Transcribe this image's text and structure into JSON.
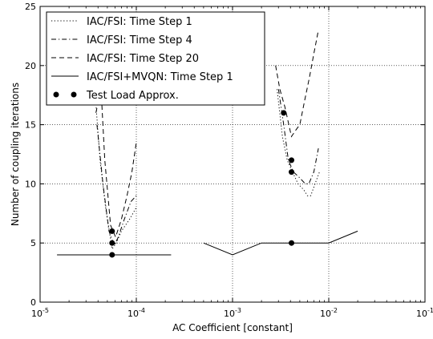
{
  "chart_data": {
    "type": "line",
    "title": "",
    "xlabel": "AC Coefficient [constant]",
    "ylabel": "Number of coupling iterations",
    "xscale": "log",
    "xlim": [
      1e-05,
      0.1
    ],
    "ylim": [
      0,
      25
    ],
    "grid": true,
    "legend_position": "top-left",
    "x_ticks": [
      {
        "value": 1e-05,
        "base": "10",
        "exp": "-5"
      },
      {
        "value": 0.0001,
        "base": "10",
        "exp": "-4"
      },
      {
        "value": 0.001,
        "base": "10",
        "exp": "-3"
      },
      {
        "value": 0.01,
        "base": "10",
        "exp": "-2"
      },
      {
        "value": 0.1,
        "base": "10",
        "exp": "-1"
      }
    ],
    "y_ticks": [
      {
        "value": 0,
        "label": "0"
      },
      {
        "value": 5,
        "label": "5"
      },
      {
        "value": 10,
        "label": "10"
      },
      {
        "value": 15,
        "label": "15"
      },
      {
        "value": 20,
        "label": "20"
      },
      {
        "value": 25,
        "label": "25"
      }
    ],
    "series": [
      {
        "name": "IAC/FSI: Time Step 1",
        "style": "dotted",
        "color": "#000000",
        "segments": [
          [
            [
              3.7e-05,
              18
            ],
            [
              4.2e-05,
              12
            ],
            [
              4.8e-05,
              8
            ],
            [
              5.6e-05,
              4.5
            ],
            [
              6.2e-05,
              5
            ],
            [
              7e-05,
              6
            ],
            [
              8.5e-05,
              7
            ],
            [
              0.0001,
              8
            ]
          ],
          [
            [
              0.0029,
              18
            ],
            [
              0.0033,
              14
            ],
            [
              0.0037,
              12
            ],
            [
              0.0042,
              11
            ],
            [
              0.0048,
              10
            ],
            [
              0.0055,
              9.5
            ],
            [
              0.006,
              9
            ],
            [
              0.0065,
              9
            ],
            [
              0.0072,
              10
            ],
            [
              0.008,
              11
            ]
          ]
        ]
      },
      {
        "name": "IAC/FSI: Time Step 4",
        "style": "dashdot",
        "color": "#000000",
        "segments": [
          [
            [
              3.9e-05,
              15
            ],
            [
              4.5e-05,
              10
            ],
            [
              5.2e-05,
              6
            ],
            [
              5.9e-05,
              4.8
            ],
            [
              6.5e-05,
              5.5
            ],
            [
              7.5e-05,
              7
            ],
            [
              8.8e-05,
              8.5
            ],
            [
              0.0001,
              9
            ]
          ],
          [
            [
              0.003,
              18
            ],
            [
              0.0034,
              15
            ],
            [
              0.0038,
              12
            ],
            [
              0.0043,
              11
            ],
            [
              0.005,
              10.5
            ],
            [
              0.0057,
              10
            ],
            [
              0.0062,
              10
            ],
            [
              0.007,
              11
            ],
            [
              0.0078,
              13
            ]
          ]
        ]
      },
      {
        "name": "IAC/FSI: Time Step 20",
        "style": "dashed",
        "color": "#000000",
        "segments": [
          [
            [
              3.8e-05,
              16
            ],
            [
              4.3e-05,
              18
            ],
            [
              4.7e-05,
              12
            ],
            [
              5.4e-05,
              6.5
            ],
            [
              6.1e-05,
              5.5
            ],
            [
              7e-05,
              7
            ],
            [
              8e-05,
              9
            ],
            [
              9e-05,
              11
            ],
            [
              0.0001,
              13.5
            ]
          ],
          [
            [
              0.0028,
              20
            ],
            [
              0.0031,
              18
            ],
            [
              0.0035,
              16.5
            ],
            [
              0.0041,
              14
            ],
            [
              0.0045,
              14.5
            ],
            [
              0.005,
              15
            ],
            [
              0.0056,
              17
            ],
            [
              0.0063,
              19
            ],
            [
              0.007,
              21
            ],
            [
              0.0078,
              23
            ]
          ]
        ]
      },
      {
        "name": "IAC/FSI+MVQN: Time Step 1",
        "style": "solid",
        "color": "#000000",
        "segments": [
          [
            [
              1.5e-05,
              4
            ],
            [
              0.00023,
              4
            ]
          ],
          [
            [
              0.0005,
              5
            ],
            [
              0.001,
              4
            ],
            [
              0.002,
              5
            ],
            [
              0.01,
              5
            ],
            [
              0.02,
              6
            ]
          ]
        ]
      }
    ],
    "markers": {
      "name": "Test Load Approx.",
      "points": [
        {
          "x": 5.6e-05,
          "y": 6
        },
        {
          "x": 5.6e-05,
          "y": 5
        },
        {
          "x": 5.6e-05,
          "y": 4
        },
        {
          "x": 0.0034,
          "y": 16
        },
        {
          "x": 0.0041,
          "y": 12
        },
        {
          "x": 0.0041,
          "y": 11
        },
        {
          "x": 0.0041,
          "y": 5
        }
      ]
    }
  }
}
